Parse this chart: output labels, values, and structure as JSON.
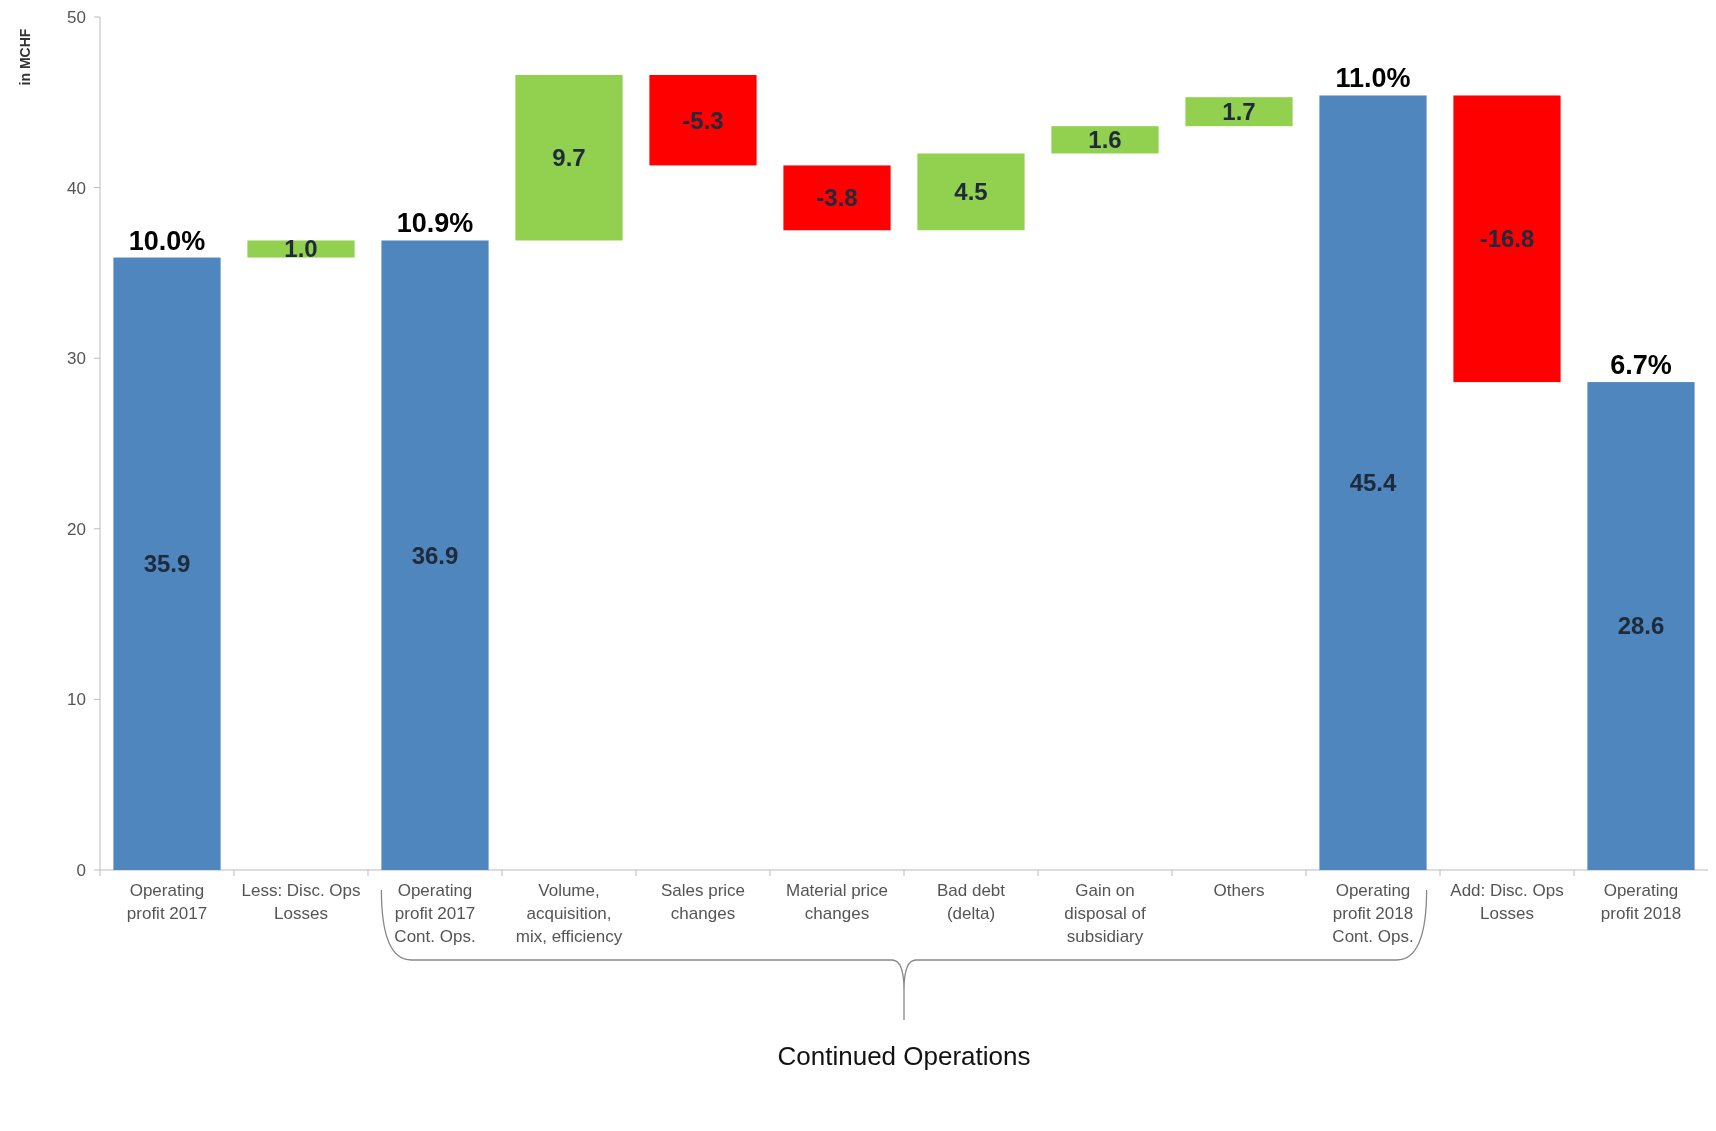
{
  "chart_data": {
    "type": "bar",
    "ylabel": "in MCHF",
    "categories": [
      "Operating profit 2017",
      "Less: Disc. Ops Losses",
      "Operating profit 2017 Cont. Ops.",
      "Volume, acquisition, mix, efficiency",
      "Sales price changes",
      "Material price changes",
      "Bad debt (delta)",
      "Gain on disposal of subsidiary",
      "Others",
      "Operating profit 2018 Cont. Ops.",
      "Add: Disc. Ops Losses",
      "Operating profit 2018"
    ],
    "values": [
      35.9,
      1.0,
      36.9,
      9.7,
      -5.3,
      -3.8,
      4.5,
      1.6,
      1.7,
      45.4,
      -16.8,
      28.6
    ],
    "base": [
      0,
      35.9,
      0,
      36.9,
      46.6,
      41.3,
      37.5,
      42.0,
      43.6,
      0,
      45.4,
      0
    ],
    "colors": [
      "#4f86be",
      "#92d050",
      "#4f86be",
      "#92d050",
      "#ff0000",
      "#ff0000",
      "#92d050",
      "#92d050",
      "#92d050",
      "#4f86be",
      "#ff0000",
      "#4f86be"
    ],
    "value_labels": [
      "35.9",
      "1.0",
      "36.9",
      "9.7",
      "-5.3",
      "-3.8",
      "4.5",
      "1.6",
      "1.7",
      "45.4",
      "-16.8",
      "28.6"
    ],
    "ylim": [
      0,
      50
    ],
    "yticks": [
      0,
      10,
      20,
      30,
      40,
      50
    ],
    "annotations": [
      {
        "text": "10.0%",
        "x": "Operating profit 2017",
        "y": 35.9
      },
      {
        "text": "10.9%",
        "x": "Operating profit 2017 Cont. Ops.",
        "y": 36.9
      },
      {
        "text": "11.0%",
        "x": "Operating profit 2018 Cont. Ops.",
        "y": 45.4
      },
      {
        "text": "6.7%",
        "x": "Operating profit 2018",
        "y": 28.6
      },
      "Continued Operations"
    ]
  }
}
